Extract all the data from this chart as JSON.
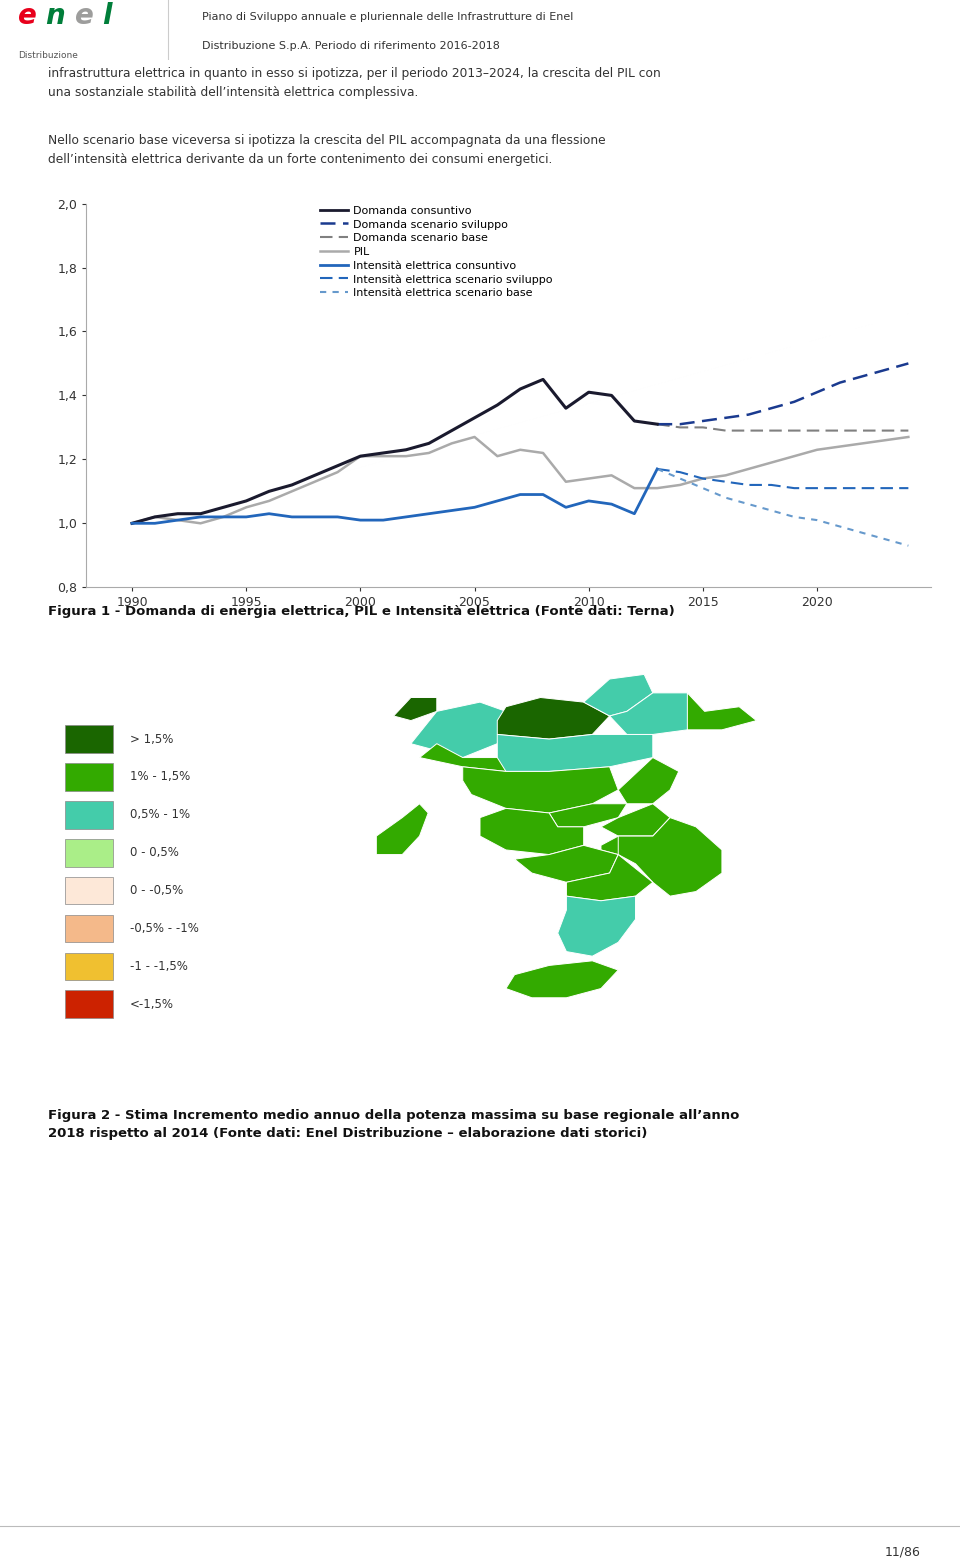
{
  "header_text1": "Piano di Sviluppo annuale e pluriennale delle Infrastrutture di Enel",
  "header_text2": "Distribuzione S.p.A. Periodo di riferimento 2016-2018",
  "body_text1": "infrastruttura elettrica in quanto in esso si ipotizza, per il periodo 2013–2024, la crescita del PIL con\nuna sostanziale stabilità dell’intensità elettrica complessiva.",
  "body_text2": "Nello scenario base viceversa si ipotizza la crescita del PIL accompagnata da una flessione\ndell’intensità elettrica derivante da un forte contenimento dei consumi energetici.",
  "fig1_caption": "Figura 1 - Domanda di energia elettrica, PIL e Intensità elettrica (Fonte dati: Terna)",
  "fig2_caption": "Figura 2 - Stima Incremento medio annuo della potenza massima su base regionale all’anno\n2018 rispetto al 2014 (Fonte dati: Enel Distribuzione – elaborazione dati storici)",
  "page_number": "11/86",
  "ylim": [
    0.8,
    2.0
  ],
  "yticks": [
    0.8,
    1.0,
    1.2,
    1.4,
    1.6,
    1.8,
    2.0
  ],
  "ytick_labels": [
    "0,8",
    "1,0",
    "1,2",
    "1,4",
    "1,6",
    "1,8",
    "2,0"
  ],
  "xticks": [
    1990,
    1995,
    2000,
    2005,
    2010,
    2015,
    2020
  ],
  "years_hist": [
    1990,
    1991,
    1992,
    1993,
    1994,
    1995,
    1996,
    1997,
    1998,
    1999,
    2000,
    2001,
    2002,
    2003,
    2004,
    2005,
    2006,
    2007,
    2008,
    2009,
    2010,
    2011,
    2012,
    2013
  ],
  "domanda_consuntivo": [
    1.0,
    1.02,
    1.03,
    1.03,
    1.05,
    1.07,
    1.1,
    1.12,
    1.15,
    1.18,
    1.21,
    1.22,
    1.23,
    1.25,
    1.29,
    1.33,
    1.37,
    1.42,
    1.45,
    1.36,
    1.41,
    1.4,
    1.32,
    1.31
  ],
  "years_forecast": [
    2013,
    2014,
    2015,
    2016,
    2017,
    2018,
    2019,
    2020,
    2021,
    2022,
    2023,
    2024
  ],
  "domanda_sviluppo": [
    1.31,
    1.31,
    1.32,
    1.33,
    1.34,
    1.36,
    1.38,
    1.41,
    1.44,
    1.46,
    1.48,
    1.5
  ],
  "domanda_base": [
    1.31,
    1.3,
    1.3,
    1.29,
    1.29,
    1.29,
    1.29,
    1.29,
    1.29,
    1.29,
    1.29,
    1.29
  ],
  "years_pil": [
    1990,
    1991,
    1992,
    1993,
    1994,
    1995,
    1996,
    1997,
    1998,
    1999,
    2000,
    2001,
    2002,
    2003,
    2004,
    2005,
    2006,
    2007,
    2008,
    2009,
    2010,
    2011,
    2012,
    2013,
    2014,
    2015,
    2016,
    2017,
    2018,
    2019,
    2020,
    2021,
    2022,
    2023,
    2024
  ],
  "pil": [
    1.0,
    1.02,
    1.01,
    1.0,
    1.02,
    1.05,
    1.07,
    1.1,
    1.13,
    1.16,
    1.21,
    1.21,
    1.21,
    1.22,
    1.25,
    1.27,
    1.21,
    1.23,
    1.22,
    1.13,
    1.14,
    1.15,
    1.11,
    1.11,
    1.12,
    1.14,
    1.15,
    1.17,
    1.19,
    1.21,
    1.23,
    1.24,
    1.25,
    1.26,
    1.27
  ],
  "intensita_consuntivo": [
    1.0,
    1.0,
    1.01,
    1.02,
    1.02,
    1.02,
    1.03,
    1.02,
    1.02,
    1.02,
    1.01,
    1.01,
    1.02,
    1.03,
    1.04,
    1.05,
    1.07,
    1.09,
    1.09,
    1.05,
    1.07,
    1.06,
    1.03,
    1.17
  ],
  "years_int_forecast": [
    2013,
    2014,
    2015,
    2016,
    2017,
    2018,
    2019,
    2020,
    2021,
    2022,
    2023,
    2024
  ],
  "intensita_sviluppo": [
    1.17,
    1.16,
    1.14,
    1.13,
    1.12,
    1.12,
    1.11,
    1.11,
    1.11,
    1.11,
    1.11,
    1.11
  ],
  "intensita_base": [
    1.17,
    1.14,
    1.11,
    1.08,
    1.06,
    1.04,
    1.02,
    1.01,
    0.99,
    0.97,
    0.95,
    0.93
  ],
  "color_domanda_consuntivo": "#1a1a2e",
  "color_domanda_sviluppo": "#1a3a8f",
  "color_domanda_base": "#808080",
  "color_pil": "#aaaaaa",
  "color_intensita_consuntivo": "#2266bb",
  "color_intensita_sviluppo": "#2266bb",
  "color_intensita_base": "#6699cc",
  "legend_labels": [
    "Domanda consuntivo",
    "Domanda scenario sviluppo",
    "Domanda scenario base",
    "PIL",
    "Intensità elettrica consuntivo",
    "Intensità elettrica scenario sviluppo",
    "Intensità elettrica scenario base"
  ],
  "map_legend": [
    [
      "> 1,5%",
      "#1a6600"
    ],
    [
      "1% - 1,5%",
      "#33aa00"
    ],
    [
      "0,5% - 1%",
      "#44ccaa"
    ],
    [
      "0 - 0,5%",
      "#aaee88"
    ],
    [
      "0 - -0,5%",
      "#fde8d8"
    ],
    [
      "-0,5% - -1%",
      "#f4b98a"
    ],
    [
      "-1 - -1,5%",
      "#f0c030"
    ],
    [
      "<-1,5%",
      "#cc2200"
    ]
  ],
  "background_color": "#ffffff",
  "text_color": "#333333"
}
